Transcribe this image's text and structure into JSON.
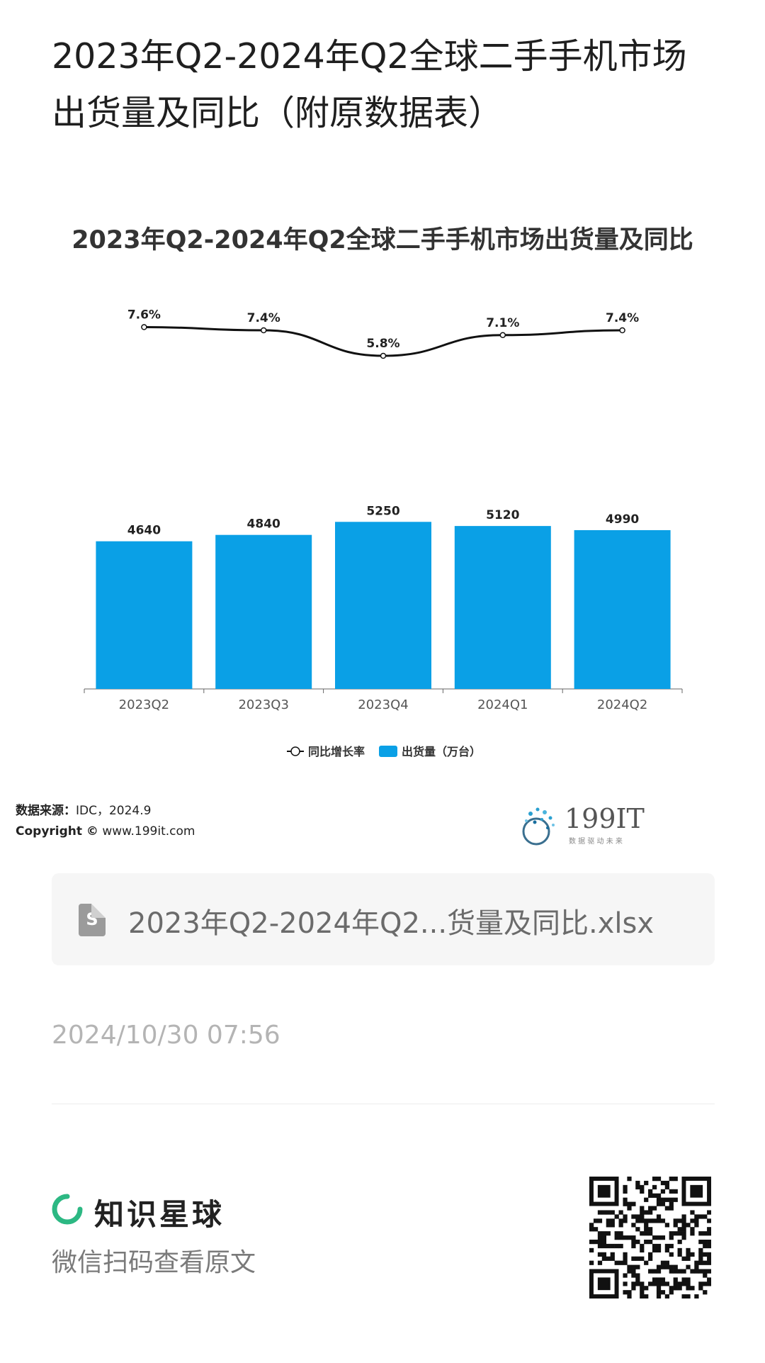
{
  "page": {
    "title": "2023年Q2-2024年Q2全球二手手机市场出货量及同比（附原数据表）"
  },
  "chart_data": {
    "type": "bar",
    "title": "2023年Q2-2024年Q2全球二手手机市场出货量及同比",
    "categories": [
      "2023Q2",
      "2023Q3",
      "2023Q4",
      "2024Q1",
      "2024Q2"
    ],
    "series": [
      {
        "name": "出货量（万台）",
        "type": "bar",
        "values": [
          4640,
          4840,
          5250,
          5120,
          4990
        ],
        "labels": [
          "4640",
          "4840",
          "5250",
          "5120",
          "4990"
        ],
        "color": "#0aa0e6"
      },
      {
        "name": "同比增长率",
        "type": "line",
        "values": [
          7.6,
          7.4,
          5.8,
          7.1,
          7.4
        ],
        "labels": [
          "7.6%",
          "7.4%",
          "5.8%",
          "7.1%",
          "7.4%"
        ],
        "color": "#111111"
      }
    ],
    "legend_position": "bottom",
    "grid": false
  },
  "source": {
    "label": "数据来源：",
    "value": "IDC，2024.9",
    "copyright_label": "Copyright ©",
    "copyright_value": "www.199it.com"
  },
  "logo": {
    "name": "199IT",
    "tagline": "数 据 驱 动 未 来"
  },
  "file": {
    "icon_letter": "S",
    "name": "2023年Q2-2024年Q2...货量及同比.xlsx"
  },
  "timestamp": "2024/10/30 07:56",
  "footer": {
    "brand": "知识星球",
    "scan_text": "微信扫码查看原文"
  },
  "colors": {
    "bar": "#0aa0e6",
    "brand_green": "#2cb883"
  }
}
